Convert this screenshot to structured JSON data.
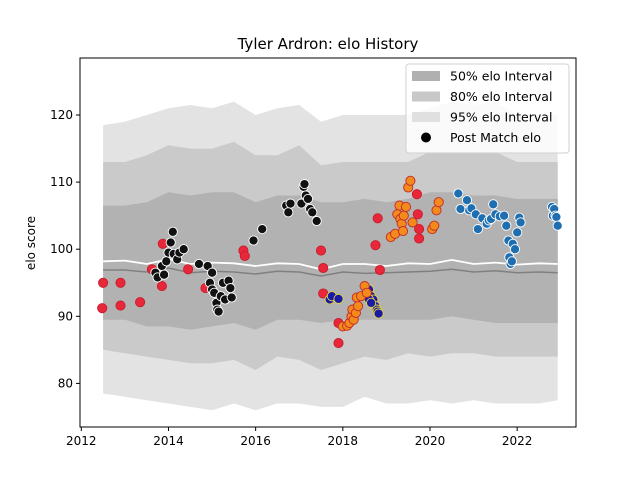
{
  "chart_data": {
    "type": "scatter",
    "title": "Tyler Ardron: elo History",
    "xlabel": "",
    "ylabel": "elo score",
    "xlim": [
      2011.97,
      2023.35
    ],
    "ylim": [
      73.5,
      128.5
    ],
    "x_ticks": [
      2012,
      2014,
      2016,
      2018,
      2020,
      2022
    ],
    "y_ticks": [
      80,
      90,
      100,
      110,
      120
    ],
    "grid": false,
    "legend_position": "top-right",
    "legend": [
      {
        "label": "50% elo Interval",
        "kind": "band",
        "color": "#b0b0b0"
      },
      {
        "label": "80% elo Interval",
        "kind": "band",
        "color": "#c8c8c8"
      },
      {
        "label": "95% elo Interval",
        "kind": "band",
        "color": "#e0e0e0"
      },
      {
        "label": "Post Match elo",
        "kind": "marker",
        "color": "#000000"
      }
    ],
    "colors": {
      "band95": "#e3e3e3",
      "band80": "#cacaca",
      "band50": "#b2b2b2",
      "mean_line": "#ffffff",
      "median_line": "#808080"
    },
    "intervals": {
      "x": [
        2012.5,
        2013.0,
        2013.5,
        2014.0,
        2014.5,
        2015.0,
        2015.5,
        2016.0,
        2016.5,
        2017.0,
        2017.5,
        2018.0,
        2018.5,
        2019.0,
        2019.5,
        2020.0,
        2020.5,
        2021.0,
        2021.5,
        2022.0,
        2022.5,
        2022.93
      ],
      "p95_upper": [
        118.5,
        119,
        120,
        121,
        121.5,
        121,
        122,
        120,
        121,
        121.5,
        119,
        120,
        120,
        120,
        120,
        121,
        122,
        121.5,
        122,
        120,
        120,
        120
      ],
      "p95_lower": [
        78.5,
        78,
        77.5,
        77,
        76.5,
        76,
        77,
        76,
        77,
        77,
        76.5,
        76.5,
        78,
        77,
        77,
        77.5,
        77,
        77.5,
        77,
        77,
        77,
        77.5
      ],
      "p80_upper": [
        113,
        113,
        114,
        115.5,
        115,
        115,
        116,
        114,
        114,
        115.5,
        112.5,
        113,
        113,
        113,
        113,
        114.5,
        114.5,
        114.5,
        114.5,
        113,
        113,
        113
      ],
      "p80_lower": [
        85,
        84.5,
        84,
        83.5,
        83,
        83,
        83.5,
        82,
        84,
        83.5,
        82,
        83,
        84,
        83.5,
        84.5,
        84,
        84.5,
        84.5,
        84,
        84,
        84,
        84
      ],
      "p50_upper": [
        106.5,
        106.5,
        107,
        108.5,
        108,
        108.5,
        108.5,
        107,
        108,
        108,
        107,
        107,
        107.5,
        107,
        107.5,
        108.5,
        108.5,
        108,
        108,
        107.5,
        107.5,
        107.5
      ],
      "p50_lower": [
        89.5,
        89.5,
        88.5,
        88.5,
        88,
        88.5,
        89,
        88,
        89.5,
        89.5,
        89,
        89.5,
        89.5,
        89.5,
        89.5,
        89.5,
        90,
        89.5,
        89,
        89,
        89,
        89
      ],
      "mean": [
        98.2,
        98.3,
        97.8,
        98.5,
        97.8,
        98.0,
        97.9,
        97.5,
        97.9,
        97.8,
        97.0,
        97.8,
        97.8,
        97.5,
        97.9,
        97.8,
        98.4,
        97.8,
        98.0,
        97.7,
        97.9,
        97.8
      ],
      "median": [
        96.9,
        96.9,
        96.6,
        97.2,
        96.5,
        96.7,
        96.6,
        96.3,
        96.7,
        96.6,
        96.0,
        96.6,
        96.4,
        96.5,
        96.6,
        96.7,
        97.0,
        96.6,
        96.8,
        96.5,
        96.6,
        96.5
      ]
    },
    "series": [
      {
        "color": "#e8283a",
        "edge": "#c81c2c",
        "points": [
          [
            2012.5,
            95.0
          ],
          [
            2012.48,
            91.2
          ],
          [
            2012.9,
            95.0
          ],
          [
            2012.9,
            91.6
          ],
          [
            2013.35,
            92.1
          ],
          [
            2013.85,
            94.5
          ],
          [
            2013.87,
            100.8
          ],
          [
            2013.62,
            97.0
          ],
          [
            2014.45,
            97.0
          ],
          [
            2014.85,
            94.2
          ],
          [
            2015.72,
            99.8
          ],
          [
            2015.75,
            99.0
          ],
          [
            2017.5,
            99.8
          ],
          [
            2017.55,
            93.4
          ],
          [
            2017.55,
            97.2
          ],
          [
            2017.9,
            89.0
          ],
          [
            2017.9,
            86.0
          ],
          [
            2018.75,
            100.6
          ],
          [
            2018.8,
            104.6
          ],
          [
            2019.7,
            108.2
          ],
          [
            2019.72,
            105.2
          ],
          [
            2019.75,
            103.0
          ],
          [
            2019.75,
            101.6
          ],
          [
            2018.85,
            96.9
          ]
        ]
      },
      {
        "color": "#111111",
        "edge": "#ffffff",
        "points": [
          [
            2013.7,
            96.5
          ],
          [
            2013.75,
            95.8
          ],
          [
            2013.85,
            97.5
          ],
          [
            2013.9,
            96.2
          ],
          [
            2013.95,
            98.2
          ],
          [
            2014.0,
            99.5
          ],
          [
            2014.05,
            101.0
          ],
          [
            2014.1,
            102.6
          ],
          [
            2014.12,
            99.3
          ],
          [
            2014.2,
            98.5
          ],
          [
            2014.25,
            99.5
          ],
          [
            2014.35,
            100.0
          ],
          [
            2014.7,
            97.8
          ],
          [
            2014.9,
            97.5
          ],
          [
            2015.0,
            96.5
          ],
          [
            2014.95,
            95.0
          ],
          [
            2015.0,
            94.0
          ],
          [
            2015.05,
            93.5
          ],
          [
            2015.1,
            92.0
          ],
          [
            2015.12,
            91.0
          ],
          [
            2015.15,
            90.7
          ],
          [
            2015.2,
            93.0
          ],
          [
            2015.25,
            95.0
          ],
          [
            2015.3,
            92.5
          ],
          [
            2015.38,
            95.3
          ],
          [
            2015.42,
            94.2
          ],
          [
            2015.45,
            92.8
          ],
          [
            2015.95,
            101.3
          ],
          [
            2016.15,
            103.0
          ],
          [
            2016.7,
            106.5
          ],
          [
            2016.75,
            105.5
          ],
          [
            2016.8,
            106.8
          ],
          [
            2017.05,
            106.8
          ],
          [
            2017.1,
            109.3
          ],
          [
            2017.12,
            109.7
          ],
          [
            2017.15,
            108.0
          ],
          [
            2017.2,
            107.5
          ],
          [
            2017.25,
            106.0
          ],
          [
            2017.3,
            105.5
          ],
          [
            2017.4,
            104.2
          ]
        ]
      },
      {
        "color": "#1a1aa8",
        "edge": "#e0d43a",
        "points": [
          [
            2017.7,
            92.5
          ],
          [
            2017.75,
            93.0
          ],
          [
            2017.9,
            92.6
          ],
          [
            2018.6,
            94.0
          ],
          [
            2018.65,
            93.0
          ],
          [
            2018.7,
            92.5
          ],
          [
            2018.75,
            91.5
          ],
          [
            2018.78,
            91.0
          ],
          [
            2018.8,
            90.7
          ],
          [
            2018.82,
            90.4
          ],
          [
            2018.6,
            92.5
          ],
          [
            2018.65,
            92.0
          ]
        ]
      },
      {
        "color": "#f28a1c",
        "edge": "#c22a2a",
        "points": [
          [
            2018.0,
            88.5
          ],
          [
            2018.1,
            88.6
          ],
          [
            2018.15,
            89.0
          ],
          [
            2018.2,
            90.0
          ],
          [
            2018.22,
            91.0
          ],
          [
            2018.25,
            89.5
          ],
          [
            2018.3,
            90.5
          ],
          [
            2018.32,
            92.8
          ],
          [
            2018.35,
            91.5
          ],
          [
            2018.42,
            93.0
          ],
          [
            2018.5,
            94.5
          ],
          [
            2018.55,
            93.5
          ],
          [
            2019.1,
            101.8
          ],
          [
            2019.2,
            102.3
          ],
          [
            2019.25,
            105.2
          ],
          [
            2019.3,
            106.5
          ],
          [
            2019.32,
            104.5
          ],
          [
            2019.35,
            103.8
          ],
          [
            2019.38,
            102.7
          ],
          [
            2019.4,
            105.0
          ],
          [
            2019.45,
            106.3
          ],
          [
            2019.5,
            109.2
          ],
          [
            2019.55,
            110.2
          ],
          [
            2019.6,
            104.0
          ],
          [
            2020.05,
            103.0
          ],
          [
            2020.1,
            103.5
          ],
          [
            2020.15,
            105.8
          ],
          [
            2020.2,
            107.0
          ]
        ]
      },
      {
        "color": "#1f6fb0",
        "edge": "#ffffff",
        "points": [
          [
            2020.65,
            108.3
          ],
          [
            2020.7,
            106.0
          ],
          [
            2020.85,
            107.3
          ],
          [
            2020.9,
            105.8
          ],
          [
            2020.95,
            106.1
          ],
          [
            2021.05,
            105.2
          ],
          [
            2021.1,
            103.0
          ],
          [
            2021.2,
            104.6
          ],
          [
            2021.3,
            103.8
          ],
          [
            2021.35,
            104.3
          ],
          [
            2021.4,
            104.5
          ],
          [
            2021.45,
            106.7
          ],
          [
            2021.5,
            105.2
          ],
          [
            2021.6,
            104.9
          ],
          [
            2021.7,
            105.0
          ],
          [
            2021.75,
            103.5
          ],
          [
            2021.8,
            101.3
          ],
          [
            2021.82,
            98.8
          ],
          [
            2021.85,
            97.8
          ],
          [
            2021.88,
            98.2
          ],
          [
            2021.9,
            100.8
          ],
          [
            2021.95,
            100.0
          ],
          [
            2022.0,
            102.5
          ],
          [
            2022.05,
            104.7
          ],
          [
            2022.08,
            104.0
          ],
          [
            2022.8,
            106.3
          ],
          [
            2022.82,
            105.0
          ],
          [
            2022.85,
            106.0
          ],
          [
            2022.88,
            105.0
          ],
          [
            2022.9,
            104.8
          ],
          [
            2022.93,
            103.5
          ]
        ]
      }
    ]
  }
}
